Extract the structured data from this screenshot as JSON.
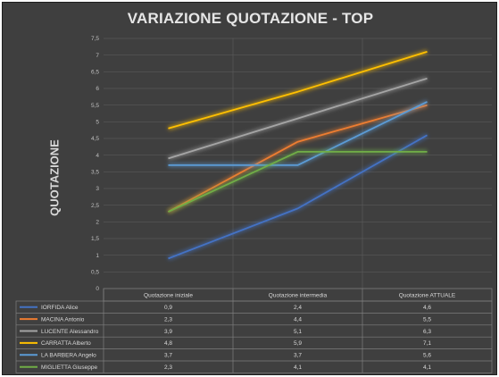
{
  "chart_data": {
    "type": "line",
    "title": "VARIAZIONE QUOTAZIONE - TOP",
    "ylabel": "QUOTAZIONE",
    "xlabel": "",
    "categories": [
      "Quotazione iniziale",
      "Quotazione intermedia",
      "Quotazione ATTUALE"
    ],
    "ylim": [
      0,
      7.5
    ],
    "yticks": [
      "0",
      "0,5",
      "1",
      "1,5",
      "2",
      "2,5",
      "3",
      "3,5",
      "4",
      "4,5",
      "5",
      "5,5",
      "6",
      "6,5",
      "7",
      "7,5"
    ],
    "grid": true,
    "legend": "data-table-below",
    "series": [
      {
        "name": "IORFIDA Alice",
        "color": "#4472c4",
        "values": [
          0.9,
          2.4,
          4.6
        ],
        "labels": [
          "0,9",
          "2,4",
          "4,6"
        ]
      },
      {
        "name": "MACINA Antonio",
        "color": "#ed7d31",
        "values": [
          2.3,
          4.4,
          5.5
        ],
        "labels": [
          "2,3",
          "4,4",
          "5,5"
        ]
      },
      {
        "name": "LUCENTE Alessandro",
        "color": "#a5a5a5",
        "values": [
          3.9,
          5.1,
          6.3
        ],
        "labels": [
          "3,9",
          "5,1",
          "6,3"
        ]
      },
      {
        "name": "CARRATTA Alberto",
        "color": "#ffc000",
        "values": [
          4.8,
          5.9,
          7.1
        ],
        "labels": [
          "4,8",
          "5,9",
          "7,1"
        ]
      },
      {
        "name": "LA BARBERA Angelo",
        "color": "#5b9bd5",
        "values": [
          3.7,
          3.7,
          5.6
        ],
        "labels": [
          "3,7",
          "3,7",
          "5,6"
        ]
      },
      {
        "name": "MIGLIETTA Giuseppe",
        "color": "#70ad47",
        "values": [
          2.3,
          4.1,
          4.1
        ],
        "labels": [
          "2,3",
          "4,1",
          "4,1"
        ]
      }
    ]
  }
}
